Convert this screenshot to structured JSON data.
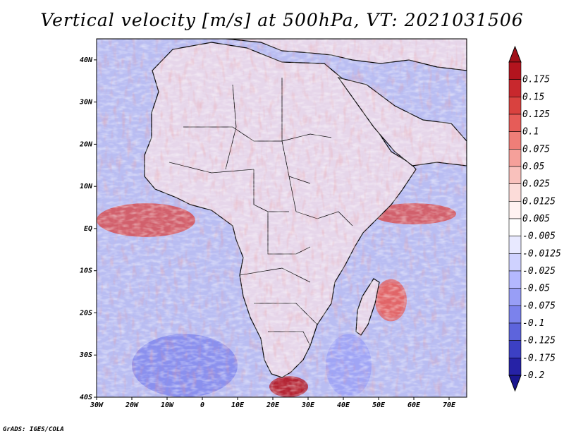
{
  "title": "Vertical velocity [m/s] at 500hPa, VT: 2021031506",
  "credit": "GrADS: IGES/COLA",
  "map": {
    "variable": "Vertical velocity",
    "units": "m/s",
    "level": "500hPa",
    "valid_time": "2021031506",
    "lon_range": [
      -30,
      75
    ],
    "lat_range": [
      -40,
      45
    ],
    "lat_ticks": [
      {
        "value": 40,
        "label": "40N"
      },
      {
        "value": 30,
        "label": "30N"
      },
      {
        "value": 20,
        "label": "20N"
      },
      {
        "value": 10,
        "label": "10N"
      },
      {
        "value": 0,
        "label": "EQ"
      },
      {
        "value": -10,
        "label": "10S"
      },
      {
        "value": -20,
        "label": "20S"
      },
      {
        "value": -30,
        "label": "30S"
      },
      {
        "value": -40,
        "label": "40S"
      }
    ],
    "lon_ticks": [
      {
        "value": -30,
        "label": "30W"
      },
      {
        "value": -20,
        "label": "20W"
      },
      {
        "value": -10,
        "label": "10W"
      },
      {
        "value": 0,
        "label": "0"
      },
      {
        "value": 10,
        "label": "10E"
      },
      {
        "value": 20,
        "label": "20E"
      },
      {
        "value": 30,
        "label": "30E"
      },
      {
        "value": 40,
        "label": "40E"
      },
      {
        "value": 50,
        "label": "50E"
      },
      {
        "value": 60,
        "label": "60E"
      },
      {
        "value": 70,
        "label": "70E"
      }
    ],
    "ocean_color": "#b9bdf2",
    "land_color": "#e6d6ea",
    "coast_color": "#000000"
  },
  "colorbar": {
    "levels": [
      {
        "label": "0.175",
        "color": "#b3141e"
      },
      {
        "label": "0.15",
        "color": "#c8282d"
      },
      {
        "label": "0.125",
        "color": "#d9423f"
      },
      {
        "label": "0.1",
        "color": "#e65c58"
      },
      {
        "label": "0.075",
        "color": "#ef7e78"
      },
      {
        "label": "0.05",
        "color": "#f5a09a"
      },
      {
        "label": "0.025",
        "color": "#f9c1bc"
      },
      {
        "label": "0.0125",
        "color": "#fcdcd9"
      },
      {
        "label": "0.005",
        "color": "#fff2f1"
      },
      {
        "label": "-0.005",
        "color": "#ffffff"
      },
      {
        "label": "-0.0125",
        "color": "#e8e9ff"
      },
      {
        "label": "-0.025",
        "color": "#cfd2ff"
      },
      {
        "label": "-0.05",
        "color": "#b4b8ff"
      },
      {
        "label": "-0.075",
        "color": "#989ef6"
      },
      {
        "label": "-0.1",
        "color": "#7b82ec"
      },
      {
        "label": "-0.125",
        "color": "#5d64dc"
      },
      {
        "label": "-0.175",
        "color": "#3c40c4"
      },
      {
        "label": "-0.2",
        "color": "#2622a6"
      }
    ],
    "top_cap_color": "#a01018",
    "bottom_cap_color": "#1a1690"
  },
  "features": [
    {
      "name": "equatorial-atlantic-ascent-band",
      "value_sign": "positive",
      "color": "#d9423f",
      "lon": [
        -30,
        -2
      ],
      "lat": [
        -2,
        6
      ]
    },
    {
      "name": "indian-ocean-ascent-band",
      "value_sign": "positive",
      "color": "#d9423f",
      "lon": [
        48,
        72
      ],
      "lat": [
        1,
        6
      ]
    },
    {
      "name": "madagascar-ascent-region",
      "value_sign": "positive",
      "color": "#e65c58",
      "lon": [
        49,
        58
      ],
      "lat": [
        -22,
        -12
      ]
    },
    {
      "name": "south-africa-cape-ascent",
      "value_sign": "positive",
      "color": "#b3141e",
      "lon": [
        19,
        30
      ],
      "lat": [
        -40,
        -35
      ]
    },
    {
      "name": "southwest-atlantic-descent",
      "value_sign": "negative",
      "color": "#7b82ec",
      "lon": [
        -20,
        10
      ],
      "lat": [
        -40,
        -25
      ]
    },
    {
      "name": "mozambique-channel-descent",
      "value_sign": "negative",
      "color": "#989ef6",
      "lon": [
        35,
        48
      ],
      "lat": [
        -40,
        -25
      ]
    }
  ]
}
